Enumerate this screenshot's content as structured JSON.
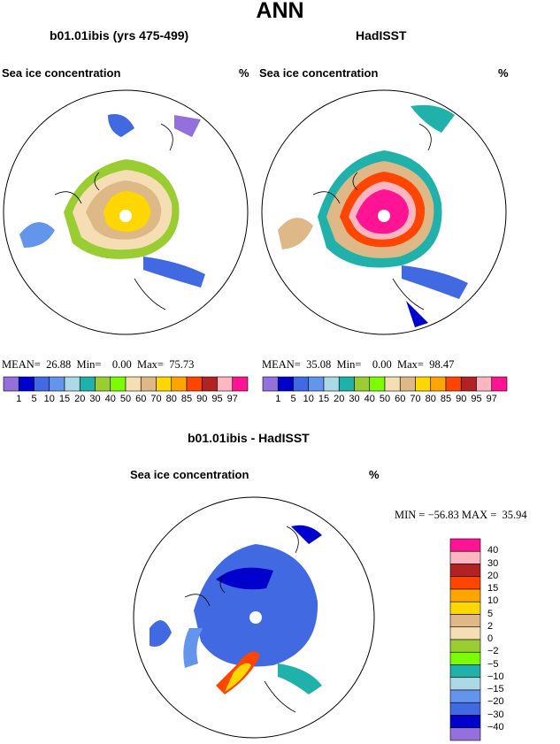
{
  "title": "ANN",
  "panels": [
    {
      "title": "b01.01ibis (yrs 475-499)",
      "field": "Sea ice concentration",
      "units": "%",
      "stats": {
        "mean_label": "MEAN=",
        "mean": "26.88",
        "min_label": "Min=",
        "min": "0.00",
        "max_label": "Max=",
        "max": "75.73"
      }
    },
    {
      "title": "HadISST",
      "field": "Sea ice concentration",
      "units": "%",
      "stats": {
        "mean_label": "MEAN=",
        "mean": "35.08",
        "min_label": "Min=",
        "min": "0.00",
        "max_label": "Max=",
        "max": "98.47"
      }
    }
  ],
  "colorbar": {
    "labels": [
      "1",
      "5",
      "10",
      "15",
      "20",
      "30",
      "40",
      "50",
      "60",
      "70",
      "80",
      "85",
      "90",
      "95",
      "97"
    ],
    "colors": [
      "#9370db",
      "#0000cd",
      "#4169e1",
      "#6495ed",
      "#add8e6",
      "#20b2aa",
      "#9acd32",
      "#7cfc00",
      "#f5deb3",
      "#deb887",
      "#ffd700",
      "#ffa500",
      "#ff4500",
      "#b22222",
      "#ffb6c1",
      "#ff1493"
    ]
  },
  "diff": {
    "title": "b01.01ibis - HadISST",
    "field": "Sea ice concentration",
    "units": "%",
    "stats": {
      "min_label": "MIN =",
      "min": "−56.83",
      "max_label": "MAX =",
      "max": "35.94"
    },
    "legend_labels": [
      "40",
      "30",
      "20",
      "15",
      "10",
      "5",
      "2",
      "0",
      "−2",
      "−5",
      "−10",
      "−15",
      "−20",
      "−30",
      "−40"
    ],
    "legend_colors": [
      "#ff1493",
      "#ffb6c1",
      "#b22222",
      "#ff4500",
      "#ffa500",
      "#ffd700",
      "#deb887",
      "#f5deb3",
      "#9acd32",
      "#7cfc00",
      "#20b2aa",
      "#add8e6",
      "#6495ed",
      "#4169e1",
      "#0000cd",
      "#9370db"
    ]
  }
}
